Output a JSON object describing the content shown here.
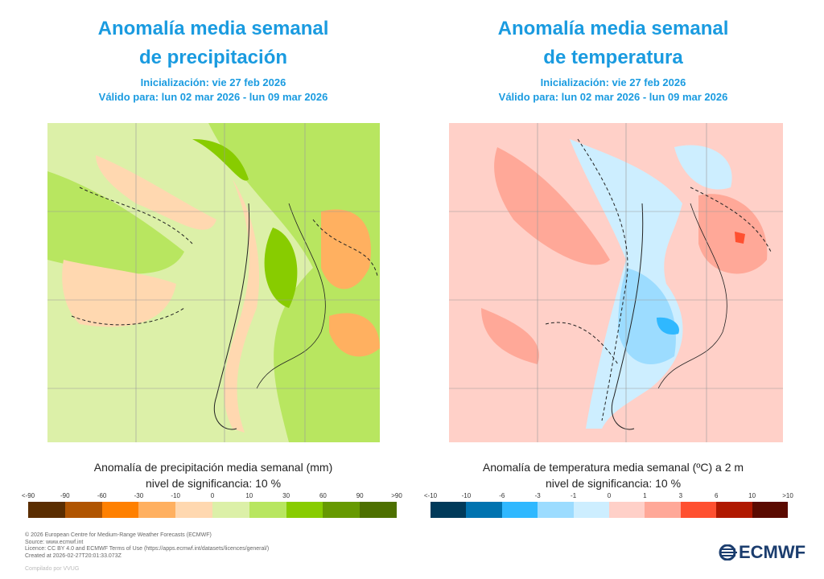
{
  "precip": {
    "title_line1": "Anomalía media semanal",
    "title_line2": "de precipitación",
    "init": "Inicialización: vie 27 feb 2026",
    "valid": "Válido para: lun 02 mar 2026 - lun 09 mar 2026",
    "caption_line1": "Anomalía de precipitación media semanal (mm)",
    "caption_line2": "nivel de significancia: 10 %",
    "legend_ticks": [
      "<-90",
      "-90",
      "-60",
      "-30",
      "-10",
      "0",
      "10",
      "30",
      "60",
      "90",
      ">90"
    ],
    "legend_colors": [
      "#5a2d00",
      "#b05400",
      "#ff8000",
      "#ffb060",
      "#ffd8b0",
      "#dcf0a8",
      "#b8e660",
      "#88cc00",
      "#669900",
      "#4d7000"
    ]
  },
  "temp": {
    "title_line1": "Anomalía media semanal",
    "title_line2": "de temperatura",
    "init": "Inicialización: vie 27 feb 2026",
    "valid": "Válido para: lun 02 mar 2026 - lun 09 mar 2026",
    "caption_line1": "Anomalía de temperatura media semanal (ºC) a 2 m",
    "caption_line2": "nivel de significancia: 10 %",
    "legend_ticks": [
      "<-10",
      "-10",
      "-6",
      "-3",
      "-1",
      "0",
      "1",
      "3",
      "6",
      "10",
      ">10"
    ],
    "legend_colors": [
      "#003a5a",
      "#0073b0",
      "#2fb8ff",
      "#9cdcff",
      "#cdeeff",
      "#ffd0c8",
      "#ffa898",
      "#ff5030",
      "#b01800",
      "#5a0a00"
    ]
  },
  "footer": {
    "lines": [
      "© 2026 European Centre for Medium-Range Weather Forecasts (ECMWF)",
      "Source: www.ecmwf.int",
      "Licence: CC BY 4.0 and ECMWF Terms of Use (https://apps.ecmwf.int/datasets/licences/general/)",
      "Created at 2026-02-27T20:01:33.073Z"
    ],
    "compiled": "Compilado por VVUG"
  },
  "logo": {
    "text": "ECMWF",
    "icon": "ecmwf-logo-icon"
  }
}
